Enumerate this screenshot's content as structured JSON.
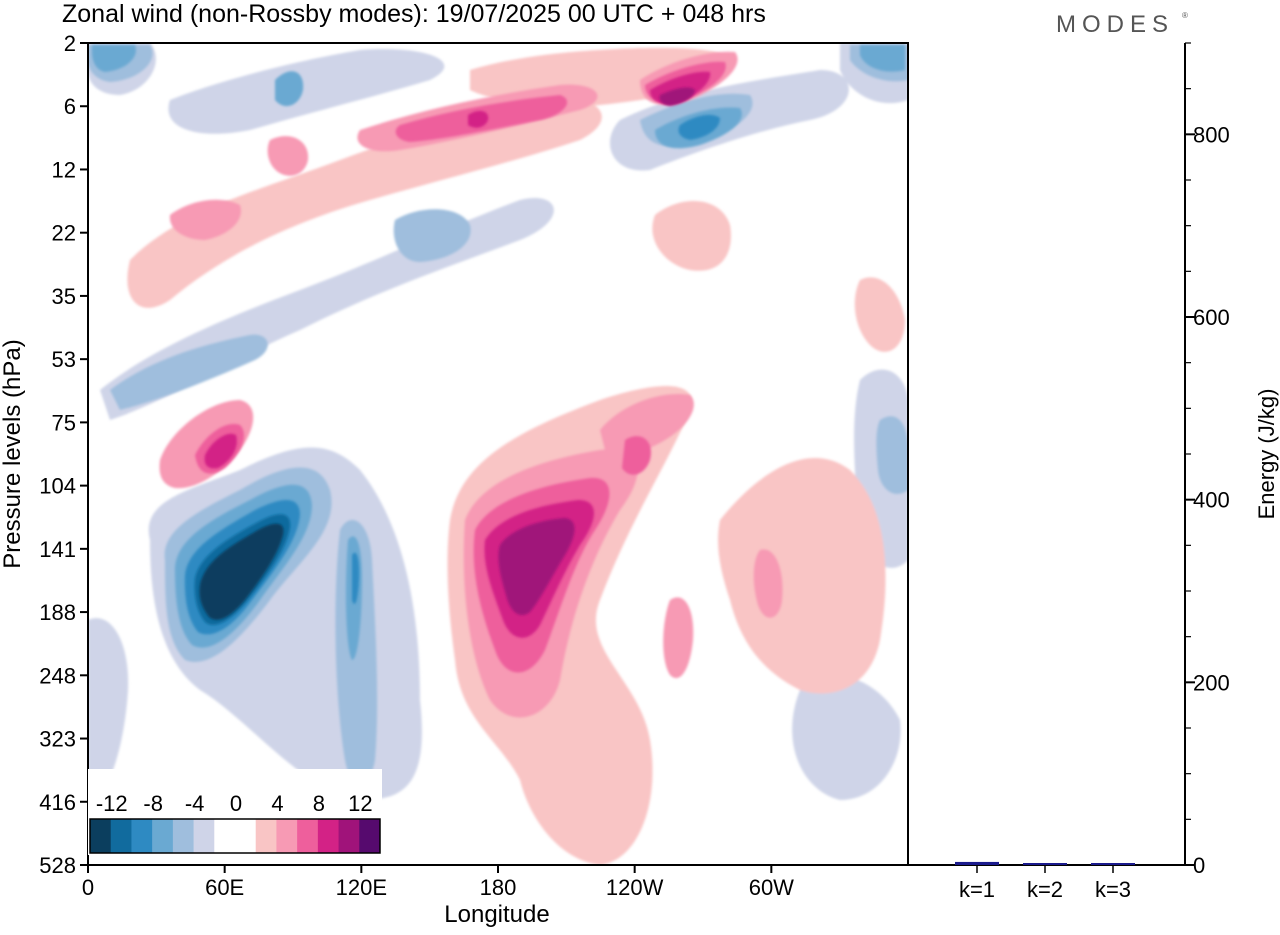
{
  "title": "Zonal wind (non-Rossby modes):  19/07/2025  00 UTC  + 048 hrs",
  "logo_text": "MODES",
  "logo_mark": "®",
  "chart_data": [
    {
      "type": "heatmap",
      "title": "Zonal wind (non-Rossby modes):  19/07/2025  00 UTC  + 048 hrs",
      "xlabel": "Longitude",
      "ylabel": "Pressure levels (hPa)",
      "x_ticks": [
        {
          "lon": 0,
          "label": "0"
        },
        {
          "lon": 60,
          "label": "60E"
        },
        {
          "lon": 120,
          "label": "120E"
        },
        {
          "lon": 180,
          "label": "180"
        },
        {
          "lon": 240,
          "label": "120W"
        },
        {
          "lon": 300,
          "label": "60W"
        }
      ],
      "xlim": [
        0,
        360
      ],
      "y_levels": [
        "2",
        "6",
        "12",
        "22",
        "35",
        "53",
        "75",
        "104",
        "141",
        "188",
        "248",
        "323",
        "416",
        "528"
      ],
      "colorbar": {
        "labels": [
          "-12",
          "-8",
          "-4",
          "0",
          "4",
          "8",
          "12"
        ],
        "colors": [
          "#0b3e5e",
          "#116b9e",
          "#2e8ac2",
          "#6aa9d2",
          "#9fbedd",
          "#cfd4e8",
          "#ffffff",
          "#ffffff",
          "#f9c5c5",
          "#f79ab4",
          "#ee5f9c",
          "#d32286",
          "#a0137a",
          "#560a6e"
        ]
      },
      "features": [
        {
          "sign": "negative",
          "level": 6,
          "lon": 50,
          "plev": 141
        },
        {
          "sign": "negative",
          "level": 4,
          "lon": 118,
          "plev": 141
        },
        {
          "sign": "negative",
          "level": 3,
          "lon": 10,
          "plev": 2
        },
        {
          "sign": "negative",
          "level": 3,
          "lon": 270,
          "plev": 8
        },
        {
          "sign": "negative",
          "level": 4,
          "lon": 347,
          "plev": 2
        },
        {
          "sign": "negative",
          "level": 2,
          "lon": 20,
          "plev": 53
        },
        {
          "sign": "negative",
          "level": 2,
          "lon": 357,
          "plev": 104
        },
        {
          "sign": "negative",
          "level": 2,
          "lon": 95,
          "plev": 248
        },
        {
          "sign": "positive",
          "level": 5,
          "lon": 180,
          "plev": 141
        },
        {
          "sign": "positive",
          "level": 4,
          "lon": 60,
          "plev": 88
        },
        {
          "sign": "positive",
          "level": 5,
          "lon": 255,
          "plev": 4
        },
        {
          "sign": "positive",
          "level": 4,
          "lon": 172,
          "plev": 7
        },
        {
          "sign": "positive",
          "level": 3,
          "lon": 40,
          "plev": 18
        },
        {
          "sign": "positive",
          "level": 2,
          "lon": 238,
          "plev": 88
        },
        {
          "sign": "positive",
          "level": 1,
          "lon": 260,
          "plev": 300
        }
      ]
    },
    {
      "type": "bar",
      "categories": [
        "k=1",
        "k=2",
        "k=3"
      ],
      "values": [
        28,
        12,
        8
      ],
      "ylabel": "Energy (J/kg)",
      "ylim": [
        0,
        900
      ],
      "y_ticks": [
        {
          "value": 0,
          "label": "0"
        },
        {
          "value": 200,
          "label": "200"
        },
        {
          "value": 400,
          "label": "400"
        },
        {
          "value": 600,
          "label": "600"
        },
        {
          "value": 800,
          "label": "800"
        }
      ],
      "bar_color": "#1a1a8c"
    }
  ]
}
